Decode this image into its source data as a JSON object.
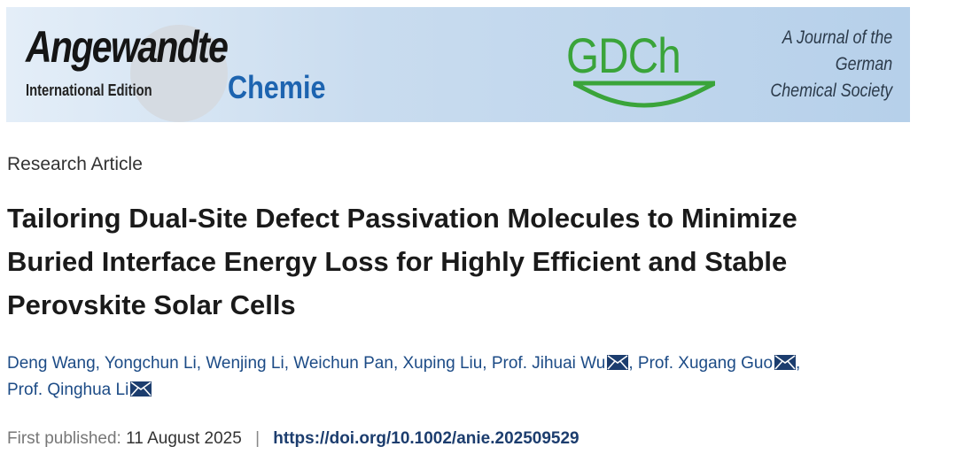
{
  "banner": {
    "journal_name": "Angewandte",
    "edition": "International Edition",
    "journal_subname": "Chemie",
    "society_logo": "GDCh",
    "society_text": [
      "A Journal of the",
      "German",
      "Chemical Society"
    ]
  },
  "article": {
    "type": "Research Article",
    "title_lines": [
      "Tailoring Dual-Site Defect Passivation Molecules to Minimize",
      "Buried Interface Energy Loss for Highly Efficient and Stable",
      "Perovskite Solar Cells"
    ],
    "authors": [
      {
        "name": "Deng Wang"
      },
      {
        "name": "Yongchun Li"
      },
      {
        "name": "Wenjing Li"
      },
      {
        "name": "Weichun Pan"
      },
      {
        "name": "Xuping Liu"
      },
      {
        "name": "Prof. Jihuai Wu",
        "icon": "mail-icon"
      },
      {
        "name": "Prof. Xugang Guo",
        "icon": "mail-icon"
      },
      {
        "name": "Prof. Qinghua Li",
        "icon": "mail-icon"
      }
    ],
    "first_published_label": "First published:",
    "first_published_date": "11 August 2025",
    "separator": "|",
    "doi": "https://doi.org/10.1002/anie.202509529"
  },
  "colors": {
    "link": "#1c4b86",
    "gdch_green": "#3aa43a",
    "chemie_blue": "#1d64b0"
  }
}
